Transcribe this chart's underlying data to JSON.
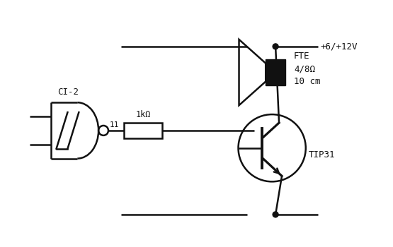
{
  "bg_color": "#ffffff",
  "line_color": "#111111",
  "lw": 1.8,
  "label_CI2": "CI-2",
  "label_11": "11",
  "label_res": "1kΩ",
  "label_tip": "TIP31",
  "label_fte": "FTE\n4/8Ω\n10 cm",
  "label_vcc": "+6/+12V"
}
